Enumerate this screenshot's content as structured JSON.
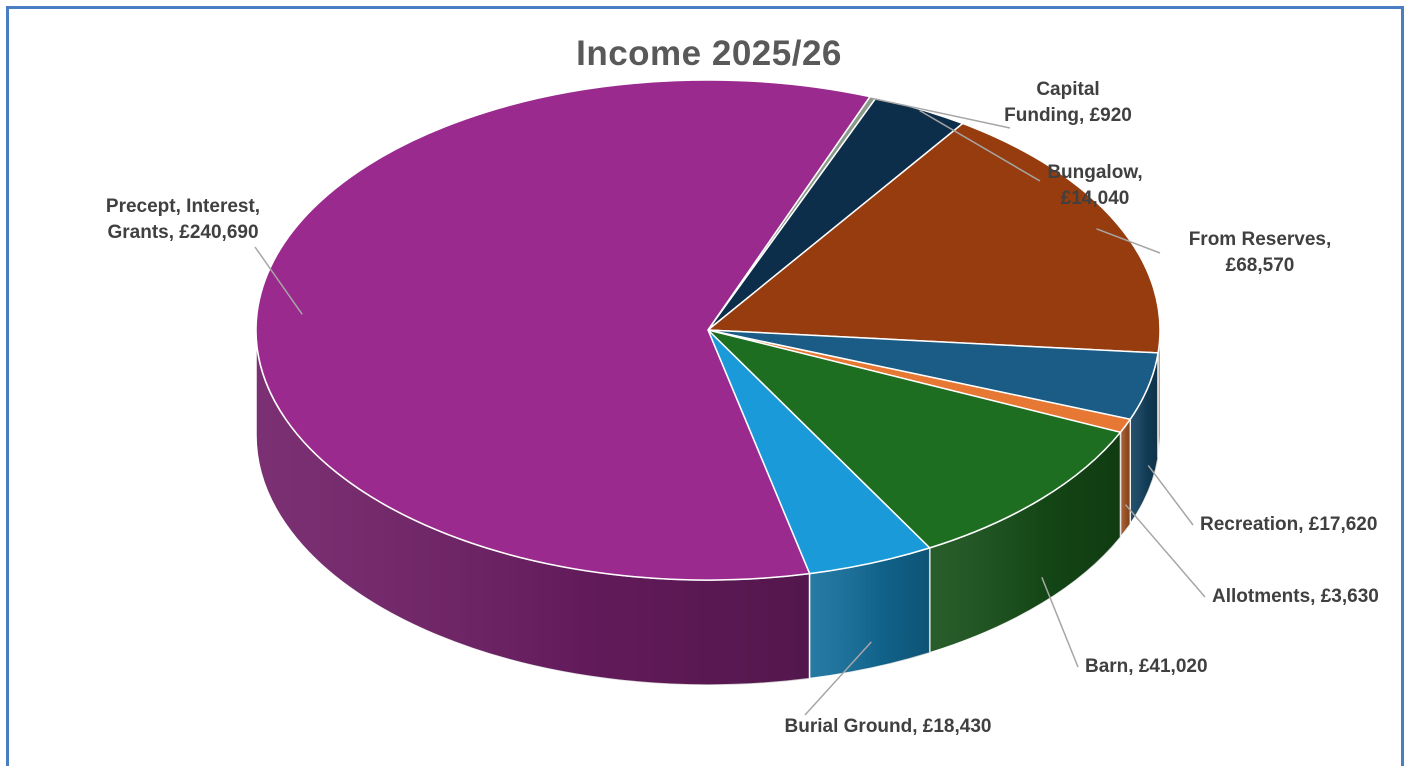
{
  "chart_data": {
    "type": "pie",
    "title": "Income 2025/26",
    "slices": [
      {
        "label": "Capital Funding, £920",
        "name": "Capital Funding",
        "value": 920,
        "color": "#8a9a8a"
      },
      {
        "label": "Bungalow, £14,040",
        "name": "Bungalow",
        "value": 14040,
        "color": "#0d2e4a"
      },
      {
        "label": "From Reserves, £68,570",
        "name": "From Reserves",
        "value": 68570,
        "color": "#963c0e"
      },
      {
        "label": "Recreation, £17,620",
        "name": "Recreation",
        "value": 17620,
        "color": "#1a5c86"
      },
      {
        "label": "Allotments, £3,630",
        "name": "Allotments",
        "value": 3630,
        "color": "#e67834"
      },
      {
        "label": "Barn, £41,020",
        "name": "Barn",
        "value": 41020,
        "color": "#1e6e22"
      },
      {
        "label": "Burial Ground, £18,430",
        "name": "Burial Ground",
        "value": 18430,
        "color": "#1a9ad8"
      },
      {
        "label": "Precept, Interest, Grants, £240,690",
        "name": "Precept, Interest, Grants",
        "value": 240690,
        "color": "#9a2a8e"
      }
    ],
    "style": "3d-pie",
    "start_angle_deg": -69,
    "legend": "none"
  }
}
